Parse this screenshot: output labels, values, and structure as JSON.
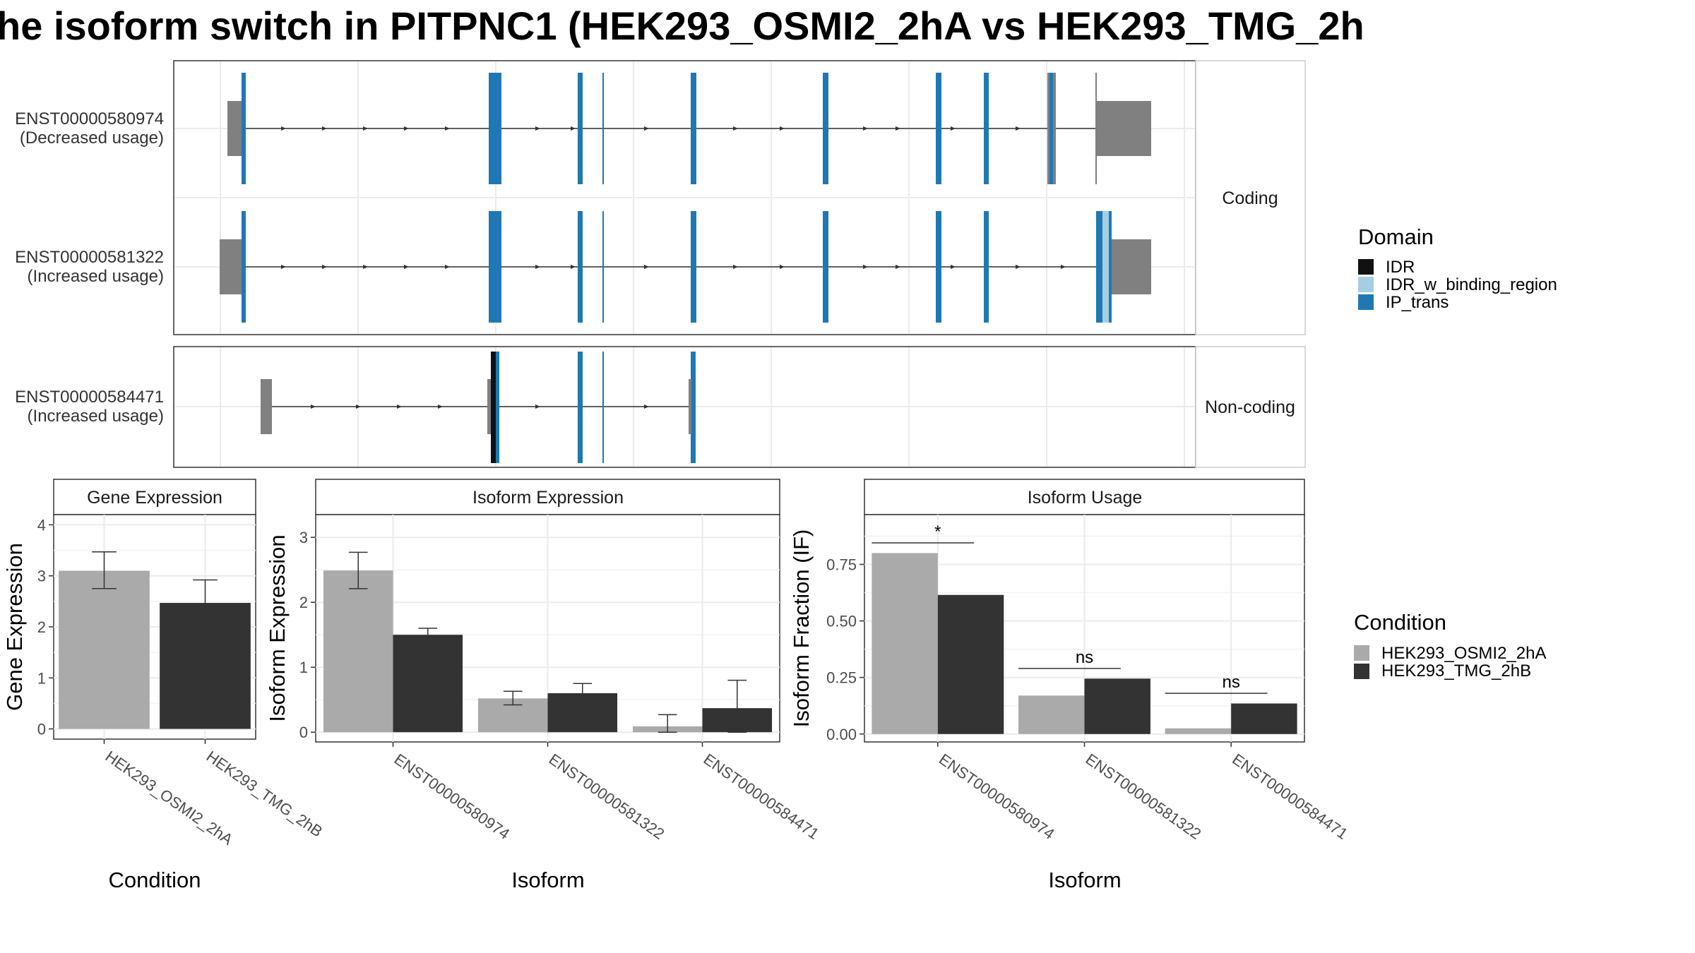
{
  "title": "he isoform switch in PITPNC1 (HEK293_OSMI2_2hA vs HEK293_TMG_2h",
  "colors": {
    "utr": "#808080",
    "IDR": "#111111",
    "IDR_w_binding_region": "#a6cee3",
    "IP_trans": "#1f78b4",
    "cond_a": "#aaaaaa",
    "cond_b": "#333333",
    "grid": "#ebebeb",
    "panel_border": "#333333"
  },
  "structure": {
    "coding_label": "Coding",
    "noncoding_label": "Non-coding",
    "isoforms": [
      {
        "id": "ENST00000580974",
        "usage": "(Decreased usage)",
        "group": "coding"
      },
      {
        "id": "ENST00000581322",
        "usage": "(Increased usage)",
        "group": "coding"
      },
      {
        "id": "ENST00000584471",
        "usage": "(Increased usage)",
        "group": "noncoding"
      }
    ]
  },
  "legend_domain": {
    "title": "Domain",
    "items": [
      {
        "label": "IDR",
        "color": "#111111"
      },
      {
        "label": "IDR_w_binding_region",
        "color": "#a6cee3"
      },
      {
        "label": "IP_trans",
        "color": "#1f78b4"
      }
    ]
  },
  "legend_condition": {
    "title": "Condition",
    "items": [
      {
        "label": "HEK293_OSMI2_2hA",
        "color": "#aaaaaa"
      },
      {
        "label": "HEK293_TMG_2hB",
        "color": "#333333"
      }
    ]
  },
  "chart_data": [
    {
      "type": "bar",
      "title": "Gene Expression",
      "xlabel": "Condition",
      "ylabel": "Gene Expression",
      "categories": [
        "HEK293_OSMI2_2hA",
        "HEK293_TMG_2hB"
      ],
      "values": [
        3.1,
        2.47
      ],
      "errors": [
        [
          2.75,
          3.47
        ],
        [
          2.03,
          2.92
        ]
      ],
      "ylim": [
        -0.2,
        4.2
      ],
      "yticks": [
        0,
        1,
        2,
        3,
        4
      ],
      "ytick_labels": [
        "0",
        "1",
        "2",
        "3",
        "4"
      ]
    },
    {
      "type": "bar",
      "title": "Isoform Expression",
      "xlabel": "Isoform",
      "ylabel": "Isoform Expression",
      "categories": [
        "ENST00000580974",
        "ENST00000581322",
        "ENST00000584471"
      ],
      "series": [
        {
          "name": "HEK293_OSMI2_2hA",
          "values": [
            2.49,
            0.52,
            0.09
          ],
          "errors": [
            [
              2.21,
              2.77
            ],
            [
              0.42,
              0.63
            ],
            [
              0.0,
              0.27
            ]
          ]
        },
        {
          "name": "HEK293_TMG_2hB",
          "values": [
            1.5,
            0.6,
            0.37
          ],
          "errors": [
            [
              1.41,
              1.6
            ],
            [
              0.44,
              0.75
            ],
            [
              0.0,
              0.8
            ]
          ]
        }
      ],
      "ylim": [
        -0.15,
        3.35
      ],
      "yticks": [
        0,
        1,
        2,
        3
      ],
      "ytick_labels": [
        "0",
        "1",
        "2",
        "3"
      ]
    },
    {
      "type": "bar",
      "title": "Isoform Usage",
      "xlabel": "Isoform",
      "ylabel": "Isoform Fraction (IF)",
      "categories": [
        "ENST00000580974",
        "ENST00000581322",
        "ENST00000584471"
      ],
      "series": [
        {
          "name": "HEK293_OSMI2_2hA",
          "values": [
            0.8,
            0.17,
            0.025
          ]
        },
        {
          "name": "HEK293_TMG_2hB",
          "values": [
            0.615,
            0.245,
            0.135
          ]
        }
      ],
      "significance": [
        {
          "label": "*",
          "y": 0.845
        },
        {
          "label": "ns",
          "y": 0.29
        },
        {
          "label": "ns",
          "y": 0.18
        }
      ],
      "ylim": [
        -0.035,
        0.97
      ],
      "yticks": [
        0,
        0.25,
        0.5,
        0.75
      ],
      "ytick_labels": [
        "0.00",
        "0.25",
        "0.50",
        "0.75"
      ]
    }
  ]
}
